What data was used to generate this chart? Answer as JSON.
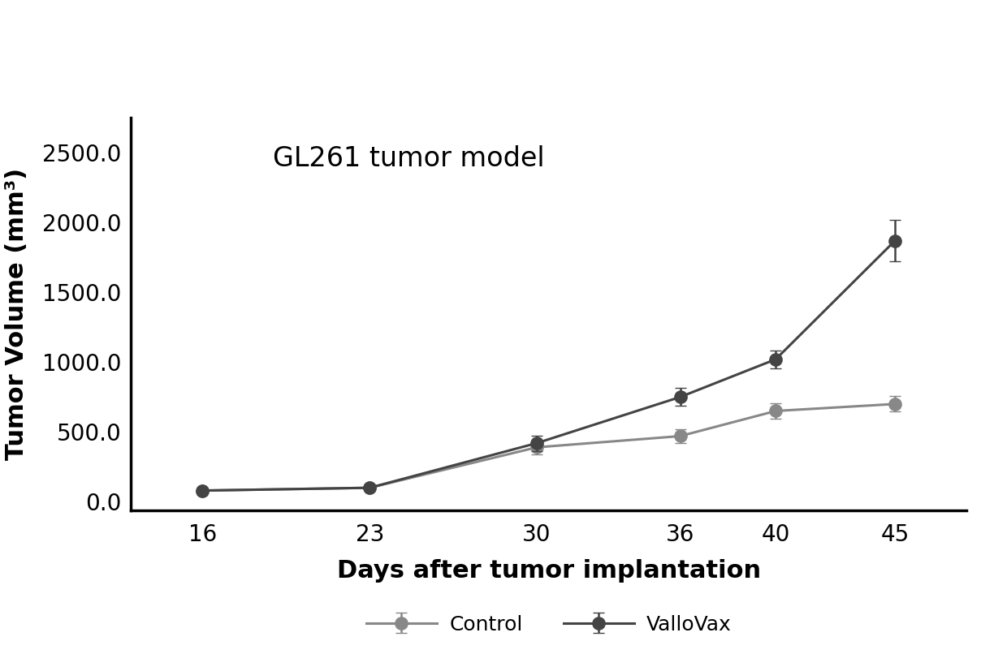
{
  "days": [
    16,
    23,
    30,
    36,
    40,
    45
  ],
  "control_mean": [
    80,
    100,
    390,
    470,
    650,
    700
  ],
  "control_err": [
    15,
    15,
    50,
    50,
    55,
    55
  ],
  "vallovax_mean": [
    80,
    100,
    420,
    750,
    1020,
    1870
  ],
  "vallovax_err": [
    15,
    15,
    55,
    65,
    65,
    150
  ],
  "title": "GL261 tumor model",
  "xlabel": "Days after tumor implantation",
  "ylabel": "Tumor Volume (mm³)",
  "yticks": [
    0.0,
    500.0,
    1000.0,
    1500.0,
    2000.0,
    2500.0
  ],
  "ytick_labels": [
    "0.0",
    "500.0",
    "1000.0",
    "1500.0",
    "2000.0",
    "2500.0"
  ],
  "ylim": [
    -60,
    2750
  ],
  "xlim": [
    13,
    48
  ],
  "control_color": "#888888",
  "vallovax_color": "#444444",
  "background_color": "#ffffff",
  "legend_labels": [
    "Control",
    "ValloVax"
  ],
  "title_fontsize": 24,
  "label_fontsize": 22,
  "tick_fontsize": 20,
  "legend_fontsize": 18,
  "linewidth": 2.2,
  "markersize": 11,
  "capsize": 5,
  "elinewidth": 1.8
}
